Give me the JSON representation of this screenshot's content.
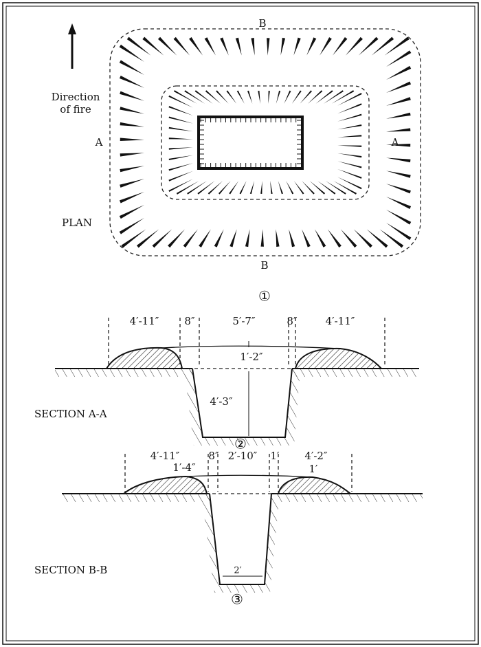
{
  "plan": {
    "top_label": "B",
    "bottom_label": "B",
    "left_label": "A",
    "right_label": "A",
    "direction": [
      "Direction",
      "of fire"
    ],
    "title": "PLAN",
    "number": "①"
  },
  "section_aa": {
    "dimensions": [
      "4′-11″",
      "8″",
      "5′-7″",
      "8″",
      "4′-11″"
    ],
    "cover": "1′-2″",
    "depth": "4′-3″",
    "title": "SECTION A-A",
    "number": "②"
  },
  "section_bb": {
    "dimensions": [
      "4′-11″",
      "8″",
      "2′-10″",
      "1′",
      "4′-2″"
    ],
    "left_cover": "1′-4″",
    "right_cover": "1′",
    "bottom_width": "2′",
    "title": "SECTION B-B",
    "number": "③"
  }
}
